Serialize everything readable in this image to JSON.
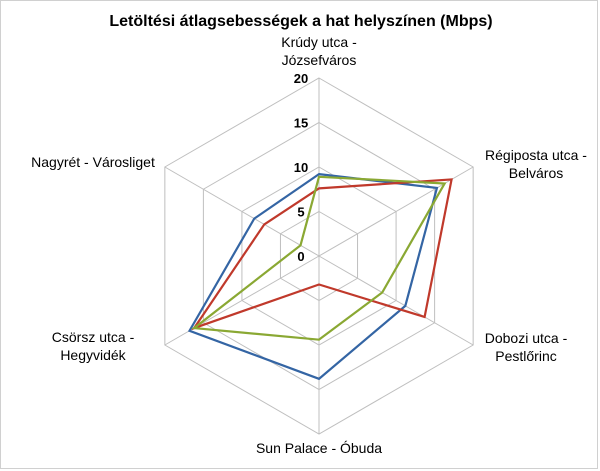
{
  "chart_data": {
    "type": "radar",
    "title": "Letöltési átlagsebességek a hat helyszínen (Mbps)",
    "categories": [
      [
        "Krúdy utca -",
        "Józsefváros"
      ],
      [
        "Régiposta utca -",
        "Belváros"
      ],
      [
        "Dobozi utca -",
        "Pestlőrinc"
      ],
      [
        "Sun Palace - Óbuda"
      ],
      [
        "Csörsz utca -",
        "Hegyvidék"
      ],
      [
        "Nagyrét - Városliget"
      ]
    ],
    "r_ticks": [
      0,
      5,
      10,
      15,
      20
    ],
    "rlim": [
      0,
      20
    ],
    "grid": true,
    "legend": "none",
    "series": [
      {
        "color": "#3465a4",
        "values": [
          9.2,
          15.3,
          11.2,
          13.8,
          16.8,
          8.4
        ]
      },
      {
        "color": "#c0392b",
        "values": [
          7.6,
          17.2,
          13.7,
          3.2,
          16.2,
          7.1
        ]
      },
      {
        "color": "#8aa833",
        "values": [
          8.9,
          16.3,
          8.2,
          9.4,
          16.2,
          2.4
        ]
      }
    ]
  }
}
